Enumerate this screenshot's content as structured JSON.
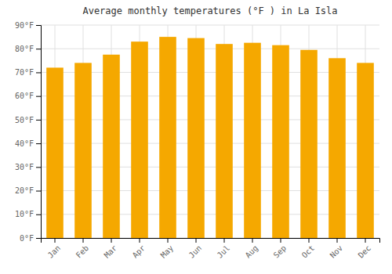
{
  "chart_data": {
    "type": "bar",
    "title": "Average monthly temperatures (°F ) in La Isla",
    "categories": [
      "Jan",
      "Feb",
      "Mar",
      "Apr",
      "May",
      "Jun",
      "Jul",
      "Aug",
      "Sep",
      "Oct",
      "Nov",
      "Dec"
    ],
    "values": [
      72,
      74,
      77.5,
      83,
      85,
      84.5,
      82,
      82.5,
      81.5,
      79.5,
      76,
      74
    ],
    "color": "#F5A800",
    "ylim": [
      0,
      90
    ],
    "yticks": [
      {
        "value": 0,
        "label": "0°F"
      },
      {
        "value": 10,
        "label": "10°F"
      },
      {
        "value": 20,
        "label": "20°F"
      },
      {
        "value": 30,
        "label": "30°F"
      },
      {
        "value": 40,
        "label": "40°F"
      },
      {
        "value": 50,
        "label": "50°F"
      },
      {
        "value": 60,
        "label": "60°F"
      },
      {
        "value": 70,
        "label": "70°F"
      },
      {
        "value": 80,
        "label": "80°F"
      },
      {
        "value": 90,
        "label": "90°F"
      }
    ],
    "grid": true
  }
}
